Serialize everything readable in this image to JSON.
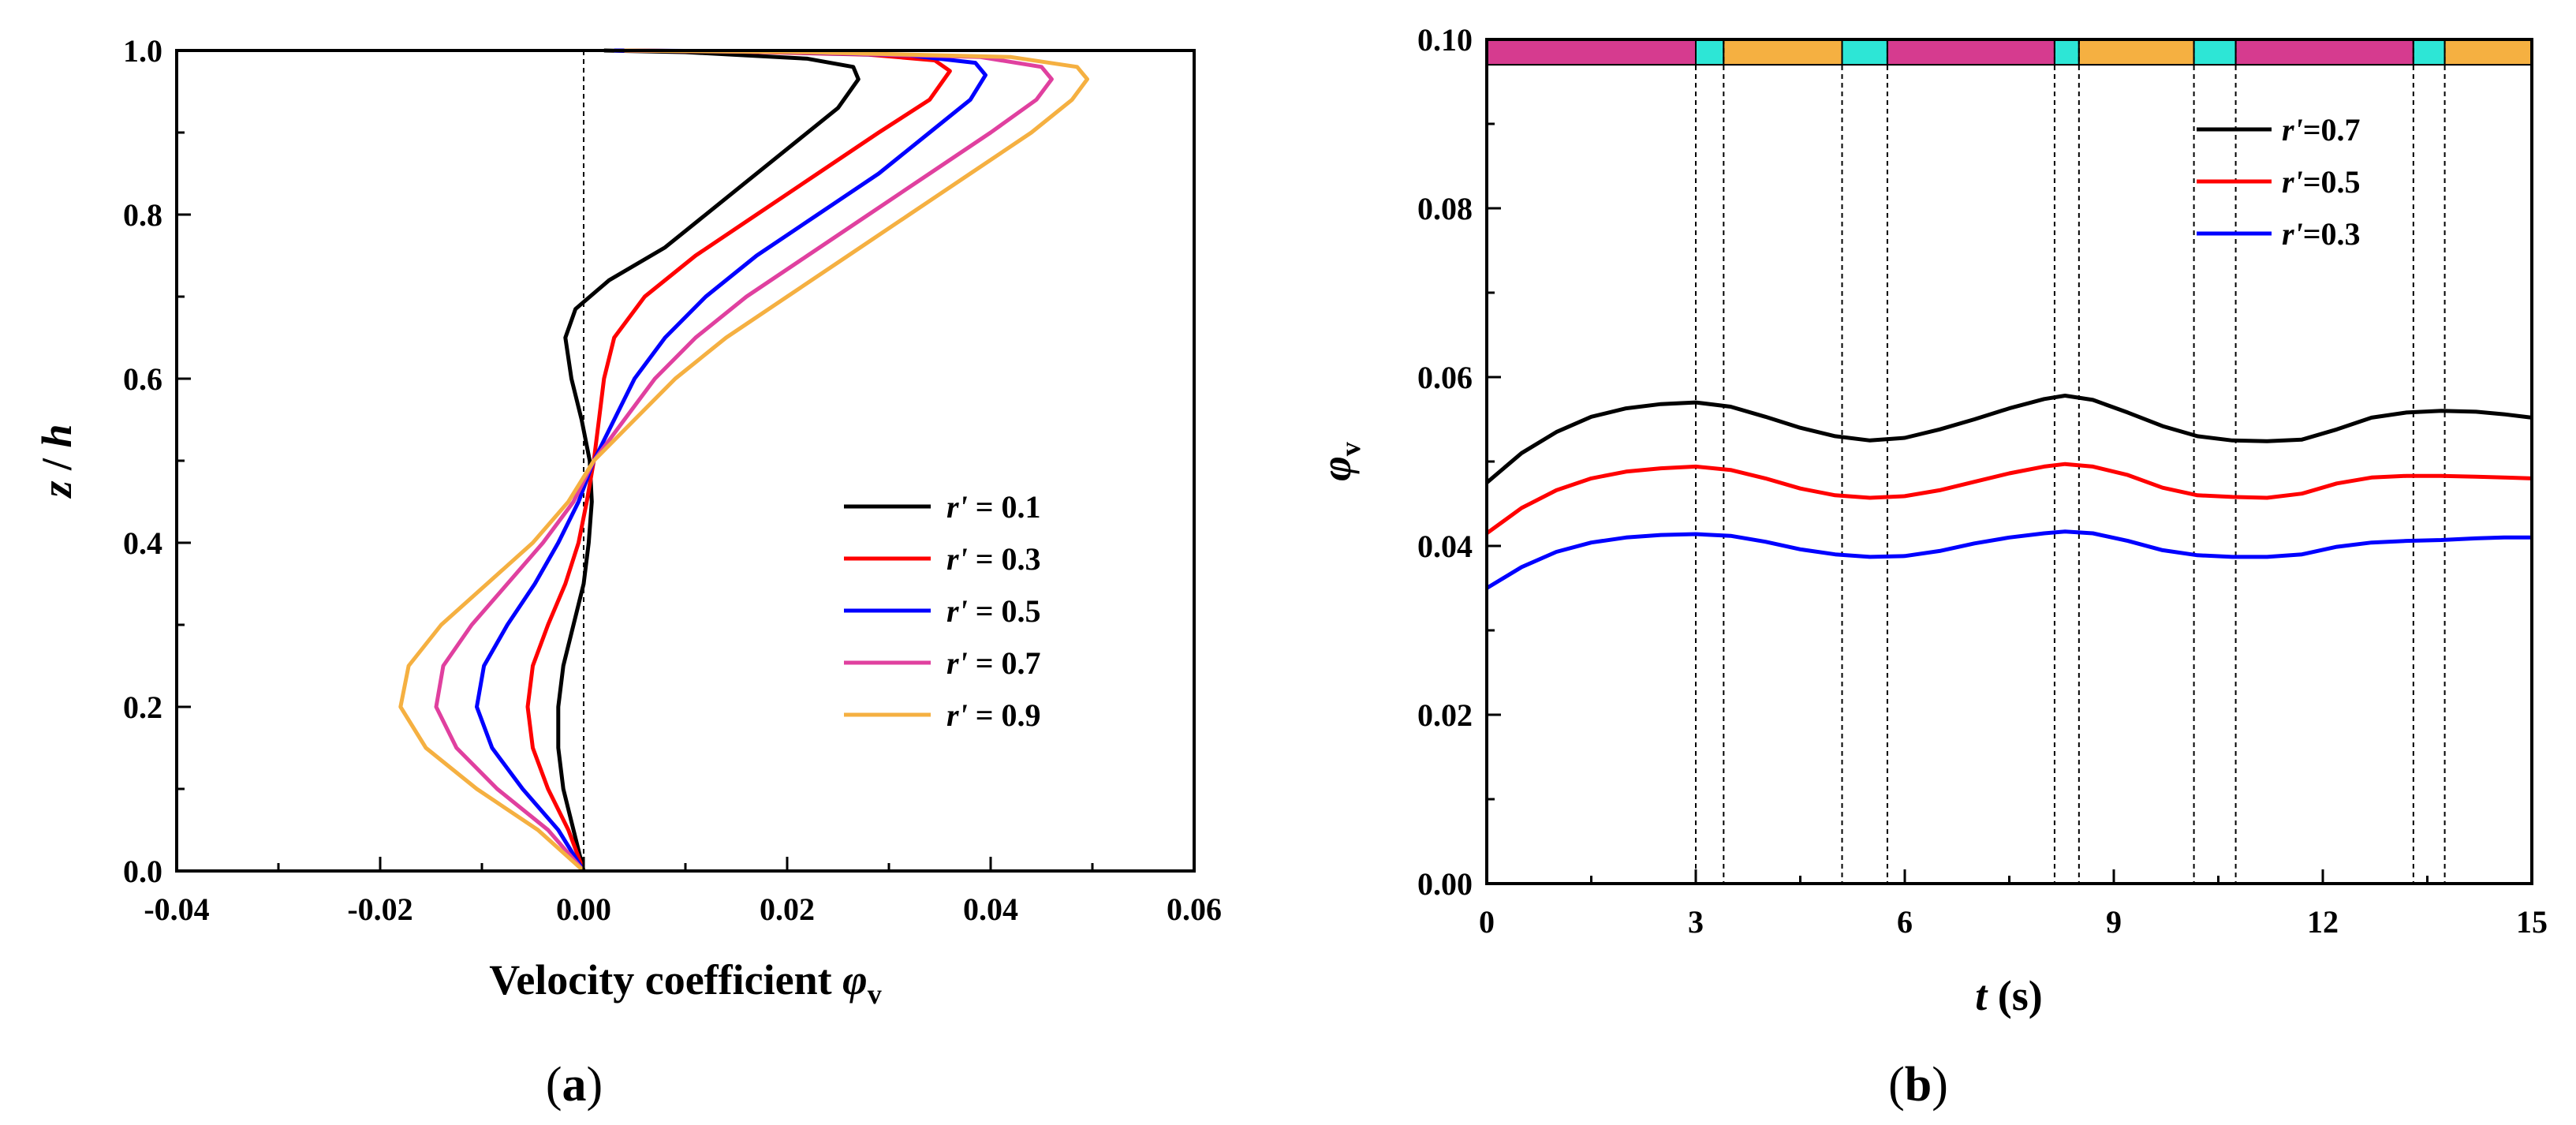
{
  "chart_data": [
    {
      "panel": "a",
      "type": "line",
      "panel_label_pre": "(",
      "panel_label_letter": "a",
      "panel_label_post": ")",
      "xlabel_text": "Velocity coefficient ",
      "xlabel_symbol": "φ",
      "xlabel_sub": "v",
      "ylabel_z": "z",
      "ylabel_slash": " / ",
      "ylabel_h": "h",
      "xlim": [
        -0.04,
        0.06
      ],
      "ylim": [
        0.0,
        1.0
      ],
      "xticks": [
        "-0.04",
        "-0.02",
        "0.00",
        "0.02",
        "0.04",
        "0.06"
      ],
      "xtick_values": [
        -0.04,
        -0.02,
        0.0,
        0.02,
        0.04,
        0.06
      ],
      "yticks": [
        "0.0",
        "0.2",
        "0.4",
        "0.6",
        "0.8",
        "1.0"
      ],
      "ytick_values": [
        0.0,
        0.2,
        0.4,
        0.6,
        0.8,
        1.0
      ],
      "reference_line_x": 0.0,
      "legend_position": "center-right",
      "series": [
        {
          "name_sym": "r'",
          "name_rest": " = 0.1",
          "color": "#000000",
          "points": [
            [
              0.0,
              0.0
            ],
            [
              -0.001,
              0.05
            ],
            [
              -0.002,
              0.1
            ],
            [
              -0.0025,
              0.15
            ],
            [
              -0.0025,
              0.2
            ],
            [
              -0.002,
              0.25
            ],
            [
              -0.001,
              0.3
            ],
            [
              0.0,
              0.35
            ],
            [
              0.0005,
              0.4
            ],
            [
              0.0008,
              0.45
            ],
            [
              0.0006,
              0.5
            ],
            [
              -0.0002,
              0.55
            ],
            [
              -0.0012,
              0.6
            ],
            [
              -0.0018,
              0.65
            ],
            [
              -0.0008,
              0.685
            ],
            [
              0.0025,
              0.72
            ],
            [
              0.008,
              0.76
            ],
            [
              0.014,
              0.82
            ],
            [
              0.02,
              0.88
            ],
            [
              0.025,
              0.93
            ],
            [
              0.027,
              0.965
            ],
            [
              0.0265,
              0.98
            ],
            [
              0.022,
              0.99
            ],
            [
              0.01,
              0.998
            ],
            [
              0.002,
              1.0
            ]
          ]
        },
        {
          "name_sym": "r'",
          "name_rest": " = 0.3",
          "color": "#ff0000",
          "points": [
            [
              0.0,
              0.0
            ],
            [
              -0.0015,
              0.05
            ],
            [
              -0.0035,
              0.1
            ],
            [
              -0.005,
              0.15
            ],
            [
              -0.0055,
              0.2
            ],
            [
              -0.005,
              0.25
            ],
            [
              -0.0035,
              0.3
            ],
            [
              -0.0018,
              0.35
            ],
            [
              -0.0005,
              0.4
            ],
            [
              0.0003,
              0.45
            ],
            [
              0.001,
              0.5
            ],
            [
              0.0015,
              0.55
            ],
            [
              0.002,
              0.6
            ],
            [
              0.003,
              0.65
            ],
            [
              0.006,
              0.7
            ],
            [
              0.011,
              0.75
            ],
            [
              0.017,
              0.8
            ],
            [
              0.023,
              0.85
            ],
            [
              0.029,
              0.9
            ],
            [
              0.034,
              0.94
            ],
            [
              0.036,
              0.975
            ],
            [
              0.0345,
              0.988
            ],
            [
              0.028,
              0.995
            ],
            [
              0.014,
              0.999
            ],
            [
              0.003,
              1.0
            ]
          ]
        },
        {
          "name_sym": "r'",
          "name_rest": " = 0.5",
          "color": "#0000ff",
          "points": [
            [
              0.0,
              0.0
            ],
            [
              -0.0025,
              0.05
            ],
            [
              -0.006,
              0.1
            ],
            [
              -0.009,
              0.15
            ],
            [
              -0.0105,
              0.2
            ],
            [
              -0.0098,
              0.25
            ],
            [
              -0.0075,
              0.3
            ],
            [
              -0.0048,
              0.35
            ],
            [
              -0.0025,
              0.4
            ],
            [
              -0.0005,
              0.45
            ],
            [
              0.001,
              0.5
            ],
            [
              0.003,
              0.55
            ],
            [
              0.005,
              0.6
            ],
            [
              0.008,
              0.65
            ],
            [
              0.012,
              0.7
            ],
            [
              0.017,
              0.75
            ],
            [
              0.023,
              0.8
            ],
            [
              0.029,
              0.85
            ],
            [
              0.034,
              0.9
            ],
            [
              0.038,
              0.94
            ],
            [
              0.0395,
              0.97
            ],
            [
              0.0385,
              0.985
            ],
            [
              0.032,
              0.994
            ],
            [
              0.016,
              0.999
            ],
            [
              0.003,
              1.0
            ]
          ]
        },
        {
          "name_sym": "r'",
          "name_rest": " = 0.7",
          "color": "#e0409f",
          "points": [
            [
              0.0,
              0.0
            ],
            [
              -0.0035,
              0.05
            ],
            [
              -0.0085,
              0.1
            ],
            [
              -0.0125,
              0.15
            ],
            [
              -0.0145,
              0.2
            ],
            [
              -0.0138,
              0.25
            ],
            [
              -0.011,
              0.3
            ],
            [
              -0.0075,
              0.35
            ],
            [
              -0.004,
              0.4
            ],
            [
              -0.001,
              0.45
            ],
            [
              0.001,
              0.5
            ],
            [
              0.004,
              0.55
            ],
            [
              0.007,
              0.6
            ],
            [
              0.011,
              0.65
            ],
            [
              0.016,
              0.7
            ],
            [
              0.022,
              0.75
            ],
            [
              0.028,
              0.8
            ],
            [
              0.034,
              0.85
            ],
            [
              0.04,
              0.9
            ],
            [
              0.0445,
              0.94
            ],
            [
              0.046,
              0.965
            ],
            [
              0.045,
              0.98
            ],
            [
              0.039,
              0.992
            ],
            [
              0.02,
              0.998
            ],
            [
              0.004,
              1.0
            ]
          ]
        },
        {
          "name_sym": "r'",
          "name_rest": " = 0.9",
          "color": "#f5b041",
          "points": [
            [
              0.0,
              0.0
            ],
            [
              -0.0045,
              0.05
            ],
            [
              -0.0105,
              0.1
            ],
            [
              -0.0155,
              0.15
            ],
            [
              -0.018,
              0.2
            ],
            [
              -0.0172,
              0.25
            ],
            [
              -0.014,
              0.3
            ],
            [
              -0.0095,
              0.35
            ],
            [
              -0.005,
              0.4
            ],
            [
              -0.0015,
              0.45
            ],
            [
              0.001,
              0.5
            ],
            [
              0.005,
              0.55
            ],
            [
              0.009,
              0.6
            ],
            [
              0.014,
              0.65
            ],
            [
              0.02,
              0.7
            ],
            [
              0.026,
              0.75
            ],
            [
              0.032,
              0.8
            ],
            [
              0.038,
              0.85
            ],
            [
              0.044,
              0.9
            ],
            [
              0.048,
              0.94
            ],
            [
              0.0495,
              0.965
            ],
            [
              0.0485,
              0.98
            ],
            [
              0.042,
              0.992
            ],
            [
              0.022,
              0.998
            ],
            [
              0.004,
              1.0
            ]
          ]
        }
      ]
    },
    {
      "panel": "b",
      "type": "line",
      "panel_label_pre": "(",
      "panel_label_letter": "b",
      "panel_label_post": ")",
      "xlabel_t": "t",
      "xlabel_rest": " (s)",
      "ylabel_symbol": "φ",
      "ylabel_sub": "v",
      "xlim": [
        0,
        15
      ],
      "ylim": [
        0.0,
        0.1
      ],
      "xticks": [
        "0",
        "3",
        "6",
        "9",
        "12",
        "15"
      ],
      "xtick_values": [
        0,
        3,
        6,
        9,
        12,
        15
      ],
      "yticks": [
        "0.00",
        "0.02",
        "0.04",
        "0.06",
        "0.08",
        "0.10"
      ],
      "ytick_values": [
        0.0,
        0.02,
        0.04,
        0.06,
        0.08,
        0.1
      ],
      "legend_position": "top-right",
      "phase_bar": {
        "colors": {
          "magenta": "#d63b8f",
          "cyan": "#2de6d6",
          "orange": "#f5b041"
        },
        "segments": [
          {
            "start": 0.0,
            "end": 3.0,
            "color": "magenta"
          },
          {
            "start": 3.0,
            "end": 3.4,
            "color": "cyan"
          },
          {
            "start": 3.4,
            "end": 5.1,
            "color": "orange"
          },
          {
            "start": 5.1,
            "end": 5.75,
            "color": "cyan"
          },
          {
            "start": 5.75,
            "end": 8.15,
            "color": "magenta"
          },
          {
            "start": 8.15,
            "end": 8.5,
            "color": "cyan"
          },
          {
            "start": 8.5,
            "end": 10.15,
            "color": "orange"
          },
          {
            "start": 10.15,
            "end": 10.75,
            "color": "cyan"
          },
          {
            "start": 10.75,
            "end": 13.3,
            "color": "magenta"
          },
          {
            "start": 13.3,
            "end": 13.75,
            "color": "cyan"
          },
          {
            "start": 13.75,
            "end": 15.0,
            "color": "orange"
          }
        ],
        "boundaries": [
          3.0,
          3.4,
          5.1,
          5.75,
          8.15,
          8.5,
          10.15,
          10.75,
          13.3,
          13.75
        ],
        "y_range": [
          0.097,
          0.1
        ]
      },
      "series": [
        {
          "name_sym": "r'",
          "name_rest": "=0.7",
          "color": "#000000",
          "points": [
            [
              0,
              0.0475
            ],
            [
              0.5,
              0.051
            ],
            [
              1.0,
              0.0535
            ],
            [
              1.5,
              0.0553
            ],
            [
              2.0,
              0.0563
            ],
            [
              2.5,
              0.0568
            ],
            [
              3.0,
              0.057
            ],
            [
              3.5,
              0.0565
            ],
            [
              4.0,
              0.0553
            ],
            [
              4.5,
              0.054
            ],
            [
              5.0,
              0.053
            ],
            [
              5.5,
              0.0525
            ],
            [
              6.0,
              0.0528
            ],
            [
              6.5,
              0.0538
            ],
            [
              7.0,
              0.055
            ],
            [
              7.5,
              0.0563
            ],
            [
              8.0,
              0.0574
            ],
            [
              8.3,
              0.0578
            ],
            [
              8.7,
              0.0573
            ],
            [
              9.2,
              0.0558
            ],
            [
              9.7,
              0.0542
            ],
            [
              10.2,
              0.053
            ],
            [
              10.7,
              0.0525
            ],
            [
              11.2,
              0.0524
            ],
            [
              11.7,
              0.0526
            ],
            [
              12.2,
              0.0538
            ],
            [
              12.7,
              0.0552
            ],
            [
              13.2,
              0.0558
            ],
            [
              13.7,
              0.056
            ],
            [
              14.2,
              0.0559
            ],
            [
              14.6,
              0.0556
            ],
            [
              15.0,
              0.0552
            ]
          ]
        },
        {
          "name_sym": "r'",
          "name_rest": "=0.5",
          "color": "#ff0000",
          "points": [
            [
              0,
              0.0415
            ],
            [
              0.5,
              0.0445
            ],
            [
              1.0,
              0.0466
            ],
            [
              1.5,
              0.048
            ],
            [
              2.0,
              0.0488
            ],
            [
              2.5,
              0.0492
            ],
            [
              3.0,
              0.0494
            ],
            [
              3.5,
              0.049
            ],
            [
              4.0,
              0.048
            ],
            [
              4.5,
              0.0468
            ],
            [
              5.0,
              0.046
            ],
            [
              5.5,
              0.0457
            ],
            [
              6.0,
              0.0459
            ],
            [
              6.5,
              0.0466
            ],
            [
              7.0,
              0.0476
            ],
            [
              7.5,
              0.0486
            ],
            [
              8.0,
              0.0494
            ],
            [
              8.3,
              0.0497
            ],
            [
              8.7,
              0.0494
            ],
            [
              9.2,
              0.0484
            ],
            [
              9.7,
              0.0469
            ],
            [
              10.2,
              0.046
            ],
            [
              10.7,
              0.0458
            ],
            [
              11.2,
              0.0457
            ],
            [
              11.7,
              0.0462
            ],
            [
              12.2,
              0.0474
            ],
            [
              12.7,
              0.0481
            ],
            [
              13.2,
              0.0483
            ],
            [
              13.7,
              0.0483
            ],
            [
              14.2,
              0.0482
            ],
            [
              14.6,
              0.0481
            ],
            [
              15.0,
              0.048
            ]
          ]
        },
        {
          "name_sym": "r'",
          "name_rest": "=0.3",
          "color": "#0000ff",
          "points": [
            [
              0,
              0.035
            ],
            [
              0.5,
              0.0375
            ],
            [
              1.0,
              0.0393
            ],
            [
              1.5,
              0.0404
            ],
            [
              2.0,
              0.041
            ],
            [
              2.5,
              0.0413
            ],
            [
              3.0,
              0.0414
            ],
            [
              3.5,
              0.0412
            ],
            [
              4.0,
              0.0405
            ],
            [
              4.5,
              0.0396
            ],
            [
              5.0,
              0.039
            ],
            [
              5.5,
              0.0387
            ],
            [
              6.0,
              0.0388
            ],
            [
              6.5,
              0.0394
            ],
            [
              7.0,
              0.0403
            ],
            [
              7.5,
              0.041
            ],
            [
              8.0,
              0.0415
            ],
            [
              8.3,
              0.0417
            ],
            [
              8.7,
              0.0415
            ],
            [
              9.2,
              0.0406
            ],
            [
              9.7,
              0.0395
            ],
            [
              10.2,
              0.0389
            ],
            [
              10.7,
              0.0387
            ],
            [
              11.2,
              0.0387
            ],
            [
              11.7,
              0.039
            ],
            [
              12.2,
              0.0399
            ],
            [
              12.7,
              0.0404
            ],
            [
              13.2,
              0.0406
            ],
            [
              13.7,
              0.0407
            ],
            [
              14.2,
              0.0409
            ],
            [
              14.6,
              0.041
            ],
            [
              15.0,
              0.041
            ]
          ]
        }
      ]
    }
  ]
}
